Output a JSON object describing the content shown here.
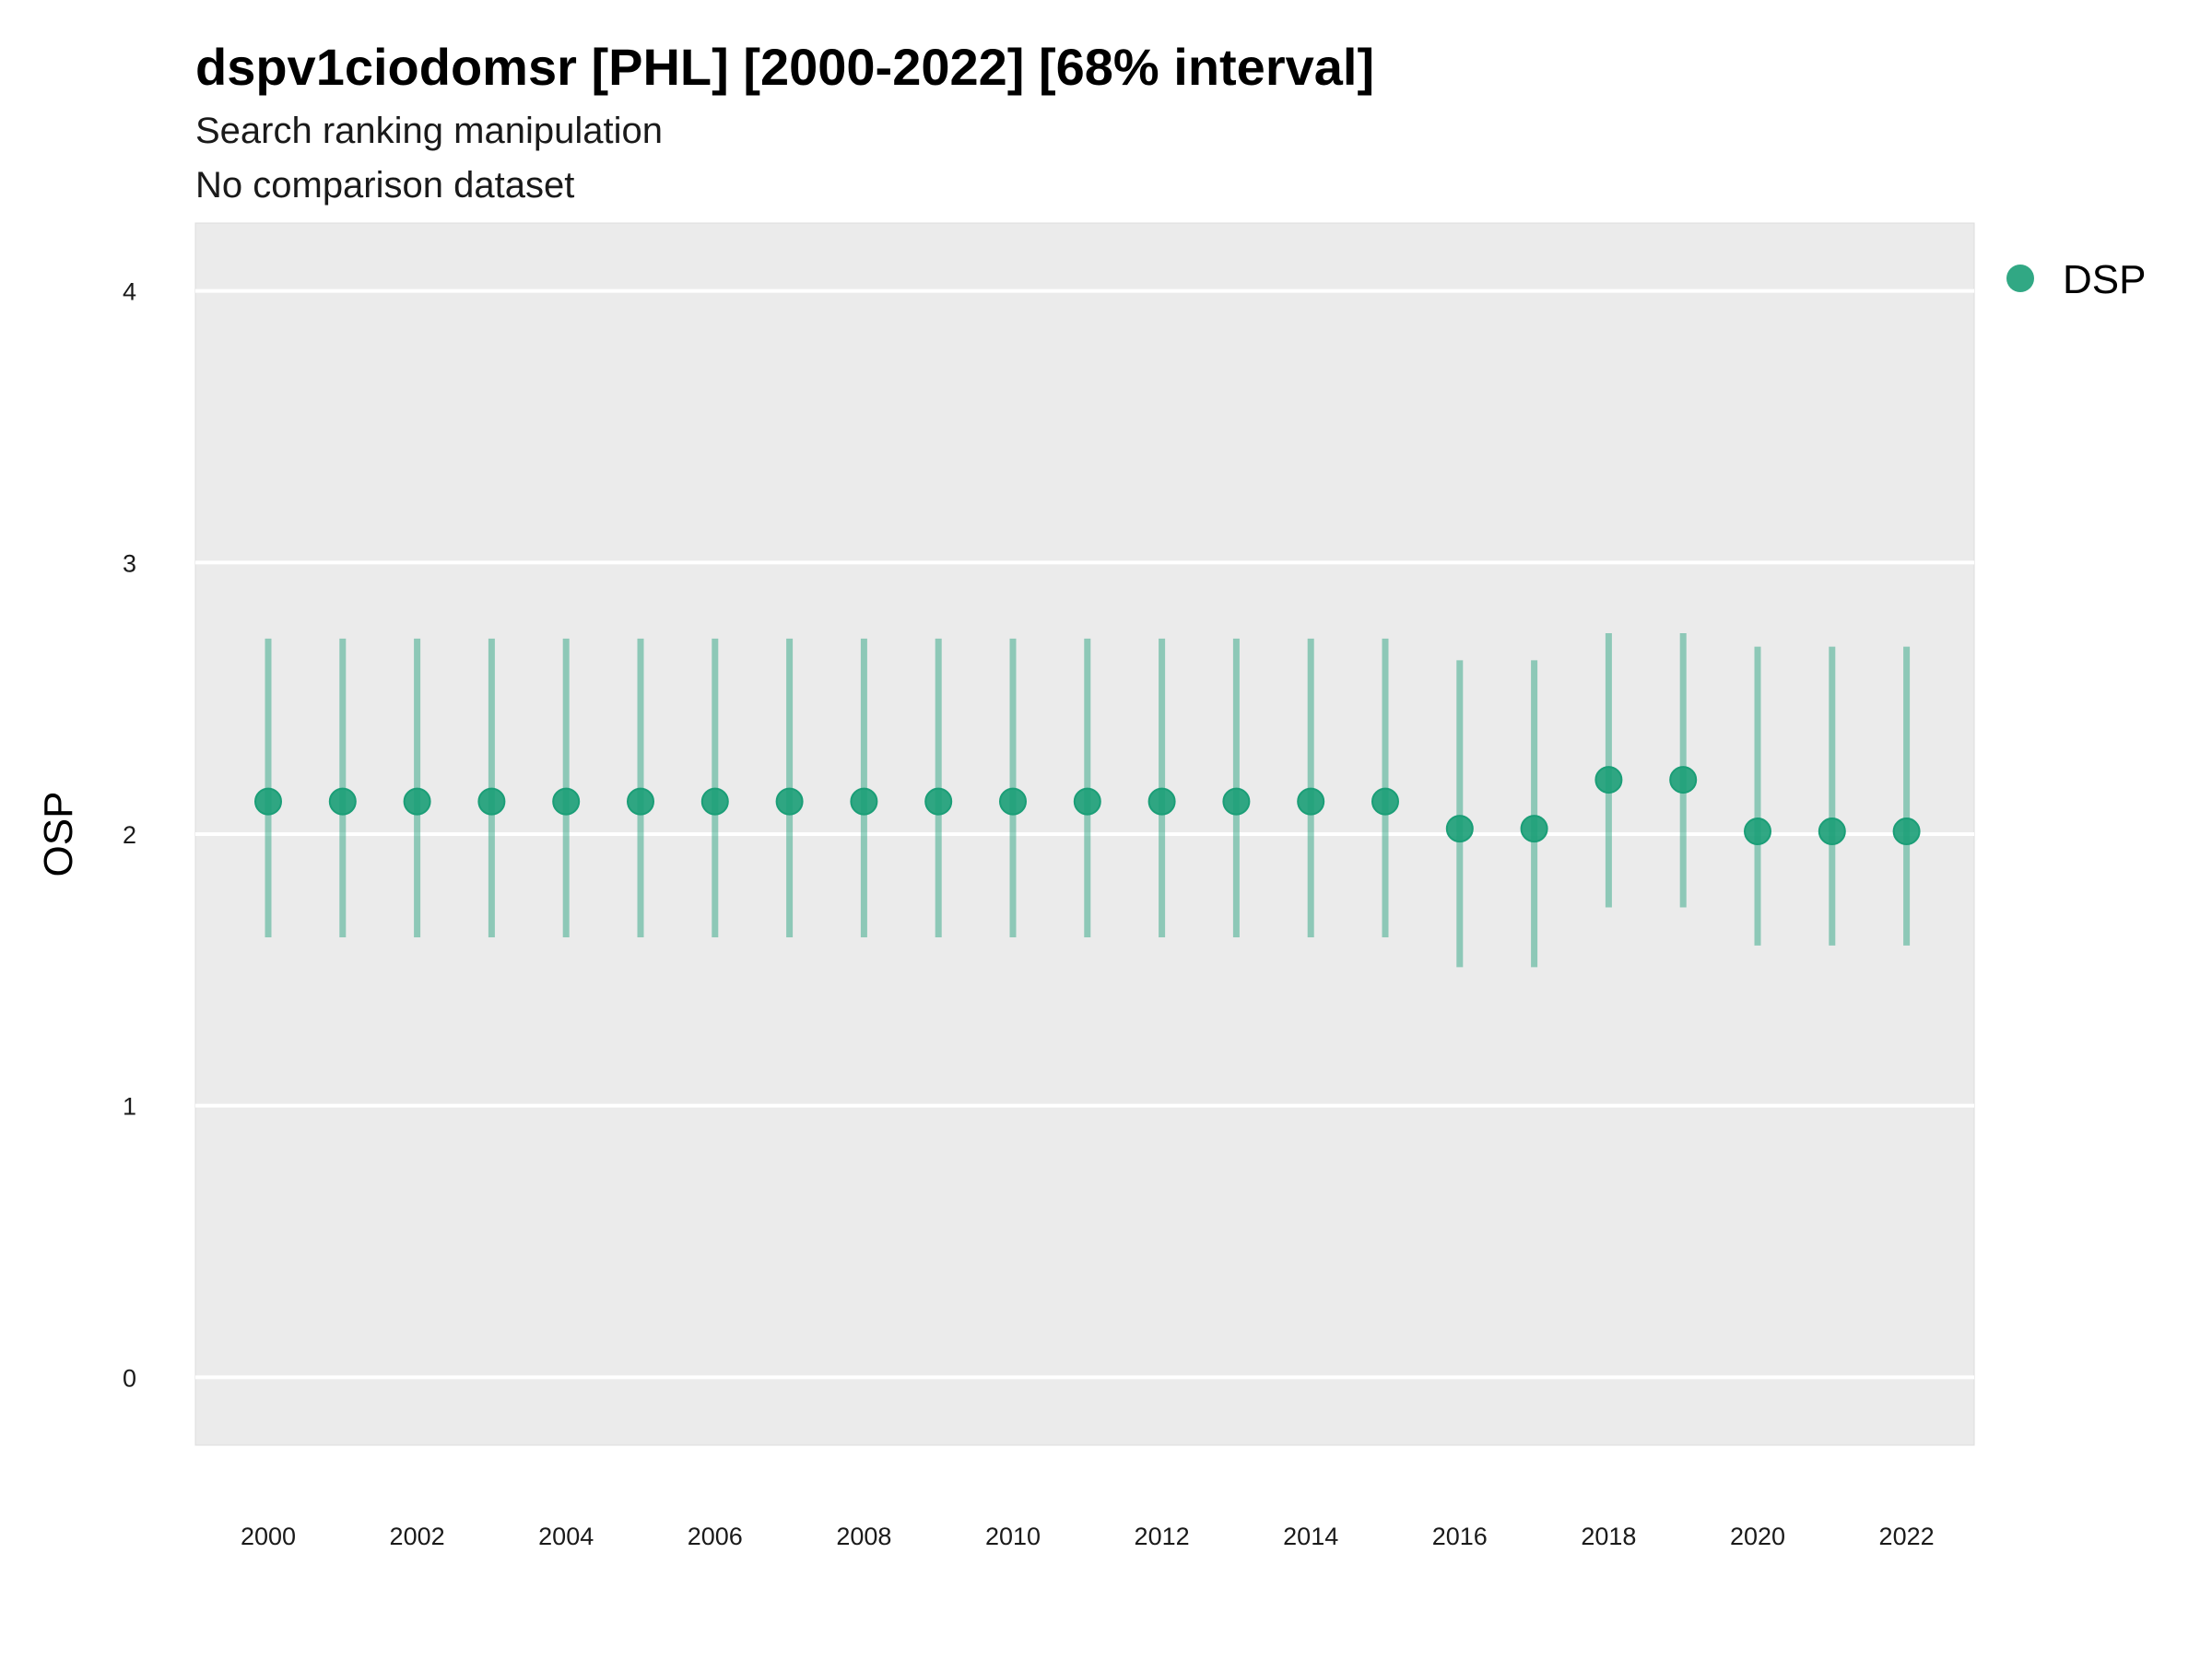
{
  "chart_data": {
    "type": "scatter",
    "title": "dspv1ciodomsr [PHL] [2000-2022] [68% interval]",
    "subtitle": "Search ranking manipulation",
    "caption": "No comparison dataset",
    "xlabel": "",
    "ylabel": "OSP",
    "ylim": [
      -0.25,
      4.25
    ],
    "y_ticks": [
      "0",
      "1",
      "2",
      "3",
      "4"
    ],
    "x_ticks": [
      "2000",
      "2002",
      "2004",
      "2006",
      "2008",
      "2010",
      "2012",
      "2014",
      "2016",
      "2018",
      "2020",
      "2022"
    ],
    "grid": true,
    "legend_position": "right",
    "x": [
      2000,
      2001,
      2002,
      2003,
      2004,
      2005,
      2006,
      2007,
      2008,
      2009,
      2010,
      2011,
      2012,
      2013,
      2014,
      2015,
      2016,
      2017,
      2018,
      2019,
      2020,
      2021,
      2022
    ],
    "series": [
      {
        "name": "DSP",
        "color": "#1b9e77",
        "values": [
          2.12,
          2.12,
          2.12,
          2.12,
          2.12,
          2.12,
          2.12,
          2.12,
          2.12,
          2.12,
          2.12,
          2.12,
          2.12,
          2.12,
          2.12,
          2.12,
          2.02,
          2.02,
          2.2,
          2.2,
          2.01,
          2.01,
          2.01
        ],
        "lower": [
          1.62,
          1.62,
          1.62,
          1.62,
          1.62,
          1.62,
          1.62,
          1.62,
          1.62,
          1.62,
          1.62,
          1.62,
          1.62,
          1.62,
          1.62,
          1.62,
          1.51,
          1.51,
          1.73,
          1.73,
          1.59,
          1.59,
          1.59
        ],
        "upper": [
          2.72,
          2.72,
          2.72,
          2.72,
          2.72,
          2.72,
          2.72,
          2.72,
          2.72,
          2.72,
          2.72,
          2.72,
          2.72,
          2.72,
          2.72,
          2.72,
          2.64,
          2.64,
          2.74,
          2.74,
          2.69,
          2.69,
          2.69
        ]
      }
    ]
  }
}
